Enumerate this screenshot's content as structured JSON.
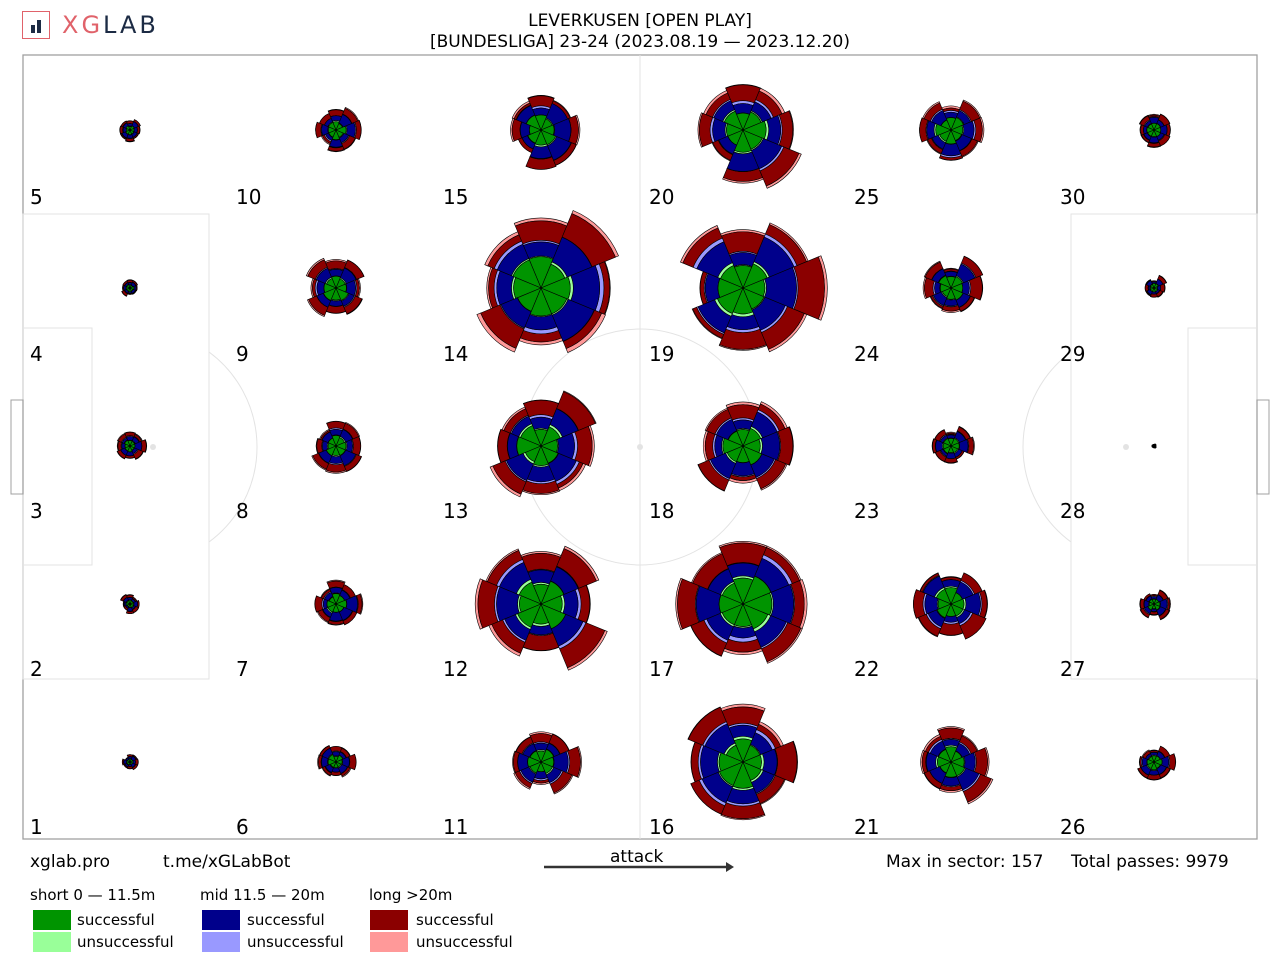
{
  "branding": {
    "logo_text_a": "XG",
    "logo_text_b": "LAB",
    "site": "xglab.pro",
    "bot": "t.me/xGLabBot"
  },
  "header": {
    "title_line1": "LEVERKUSEN [OPEN PLAY]",
    "title_line2": "[BUNDESLIGA] 23-24 (2023.08.19 — 2023.12.20)"
  },
  "direction_label": "attack",
  "stats": {
    "max_label": "Max in sector: 157",
    "total_label": "Total passes: 9979"
  },
  "legend": {
    "groups": [
      {
        "title": "short 0 — 11.5m",
        "successful_label": "successful",
        "unsuccessful_label": "unsuccessful",
        "success_color": "#009400",
        "fail_color": "#99ff99"
      },
      {
        "title": "mid 11.5 — 20m",
        "successful_label": "successful",
        "unsuccessful_label": "unsuccessful",
        "success_color": "#00008b",
        "fail_color": "#9999ff"
      },
      {
        "title": "long >20m",
        "successful_label": "successful",
        "unsuccessful_label": "unsuccessful",
        "success_color": "#8b0000",
        "fail_color": "#ff9999"
      }
    ]
  },
  "chart_data": {
    "type": "pass-direction-rose-grid",
    "max_in_sector": 157,
    "total_passes": 9979,
    "zones": [
      {
        "id": 1,
        "label": "1",
        "size": 0.1
      },
      {
        "id": 2,
        "label": "2",
        "size": 0.13
      },
      {
        "id": 3,
        "label": "3",
        "size": 0.2
      },
      {
        "id": 4,
        "label": "4",
        "size": 0.12
      },
      {
        "id": 5,
        "label": "5",
        "size": 0.14
      },
      {
        "id": 6,
        "label": "6",
        "size": 0.24
      },
      {
        "id": 7,
        "label": "7",
        "size": 0.32
      },
      {
        "id": 8,
        "label": "8",
        "size": 0.34
      },
      {
        "id": 9,
        "label": "9",
        "size": 0.4
      },
      {
        "id": 10,
        "label": "10",
        "size": 0.3
      },
      {
        "id": 11,
        "label": "11",
        "size": 0.42
      },
      {
        "id": 12,
        "label": "12",
        "size": 0.8
      },
      {
        "id": 13,
        "label": "13",
        "size": 0.72
      },
      {
        "id": 14,
        "label": "14",
        "size": 0.95
      },
      {
        "id": 15,
        "label": "15",
        "size": 0.48
      },
      {
        "id": 16,
        "label": "16",
        "size": 0.78
      },
      {
        "id": 17,
        "label": "17",
        "size": 0.92
      },
      {
        "id": 18,
        "label": "18",
        "size": 0.62
      },
      {
        "id": 19,
        "label": "19",
        "size": 0.9
      },
      {
        "id": 20,
        "label": "20",
        "size": 0.72
      },
      {
        "id": 21,
        "label": "21",
        "size": 0.46
      },
      {
        "id": 22,
        "label": "22",
        "size": 0.52
      },
      {
        "id": 23,
        "label": "23",
        "size": 0.25
      },
      {
        "id": 24,
        "label": "24",
        "size": 0.4
      },
      {
        "id": 25,
        "label": "25",
        "size": 0.46
      },
      {
        "id": 26,
        "label": "26",
        "size": 0.24
      },
      {
        "id": 27,
        "label": "27",
        "size": 0.2
      },
      {
        "id": 28,
        "label": "28",
        "size": 0.03
      },
      {
        "id": 29,
        "label": "29",
        "size": 0.14
      },
      {
        "id": 30,
        "label": "30",
        "size": 0.22
      }
    ]
  }
}
